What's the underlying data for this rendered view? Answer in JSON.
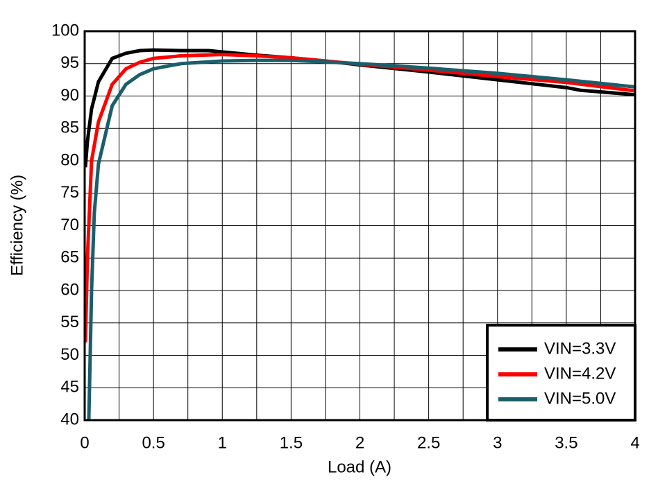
{
  "chart_data": {
    "type": "line",
    "x_label": "Load (A)",
    "y_label": "Efficiency (%)",
    "xlim": [
      0,
      4
    ],
    "ylim": [
      40,
      100
    ],
    "xticks": [
      0,
      0.5,
      1,
      1.5,
      2,
      2.5,
      3,
      3.5,
      4
    ],
    "xgrid": [
      0,
      0.25,
      0.5,
      0.75,
      1,
      1.25,
      1.5,
      1.75,
      2,
      2.25,
      2.5,
      2.75,
      3,
      3.25,
      3.5,
      3.75,
      4
    ],
    "yticks": [
      40,
      45,
      50,
      55,
      60,
      65,
      70,
      75,
      80,
      85,
      90,
      95,
      100
    ],
    "grid": true,
    "legend": "lower right",
    "series": [
      {
        "name": "VIN=3.3V",
        "color": "#000000",
        "x": [
          0.005,
          0.02,
          0.05,
          0.1,
          0.2,
          0.3,
          0.4,
          0.5,
          0.7,
          0.9,
          1,
          1.25,
          1.5,
          1.75,
          2,
          2.5,
          3,
          3.5,
          3.6,
          4
        ],
        "values": [
          79,
          83,
          88,
          92.2,
          95.8,
          96.6,
          97,
          97.1,
          97,
          97,
          96.8,
          96.3,
          95.9,
          95.4,
          94.8,
          93.7,
          92.5,
          91.3,
          90.9,
          90.2
        ]
      },
      {
        "name": "VIN=4.2V",
        "color": "#ff0000",
        "x": [
          0.005,
          0.02,
          0.05,
          0.1,
          0.2,
          0.3,
          0.4,
          0.5,
          0.7,
          1,
          1.25,
          1.5,
          2,
          2.5,
          3,
          3.5,
          4
        ],
        "values": [
          52,
          65,
          80,
          86,
          91.8,
          94.2,
          95.2,
          95.8,
          96.2,
          96.4,
          96.2,
          95.9,
          94.9,
          94,
          93,
          92.1,
          90.8
        ]
      },
      {
        "name": "VIN=5.0V",
        "color": "#1b5e6b",
        "x": [
          0.03,
          0.05,
          0.07,
          0.1,
          0.2,
          0.3,
          0.4,
          0.5,
          0.7,
          1,
          1.25,
          1.5,
          2,
          2.5,
          3,
          3.5,
          4
        ],
        "values": [
          40,
          60,
          72,
          79.5,
          88.5,
          91.8,
          93.3,
          94.2,
          95,
          95.4,
          95.5,
          95.5,
          95,
          94.3,
          93.5,
          92.5,
          91.4
        ]
      }
    ]
  }
}
